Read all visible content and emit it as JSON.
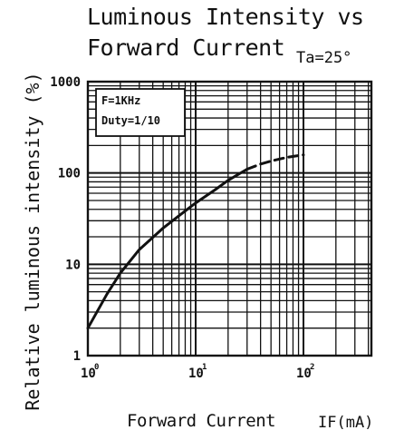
{
  "chart_data": {
    "type": "line",
    "title": "Luminous Intensity vs",
    "title_line2": "Forward Current",
    "condition": "Ta=25°",
    "xlabel": "Forward Current",
    "xunit": "IF(mA)",
    "ylabel": "Relative luminous intensity (%)",
    "x_scale": "log",
    "y_scale": "log",
    "xlim": [
      1,
      200
    ],
    "ylim": [
      1,
      1000
    ],
    "y_tick_labels": [
      "1000",
      "100",
      "10",
      "1"
    ],
    "x_tick_labels": [
      "10",
      "10",
      "10"
    ],
    "x_tick_exponents": [
      "0",
      "1",
      "2"
    ],
    "annotation_lines": [
      "F=1KHz",
      "Duty=1/10"
    ],
    "grid": true,
    "series": [
      {
        "style": "solid",
        "x": [
          1,
          1.5,
          2,
          3,
          5,
          7,
          10,
          15,
          20,
          30
        ],
        "y": [
          2,
          4.7,
          8,
          14.5,
          25,
          34,
          47,
          65,
          83,
          110
        ]
      },
      {
        "style": "dashed",
        "x": [
          30,
          40,
          50,
          70,
          100
        ],
        "y": [
          110,
          125,
          135,
          148,
          158
        ]
      }
    ]
  }
}
